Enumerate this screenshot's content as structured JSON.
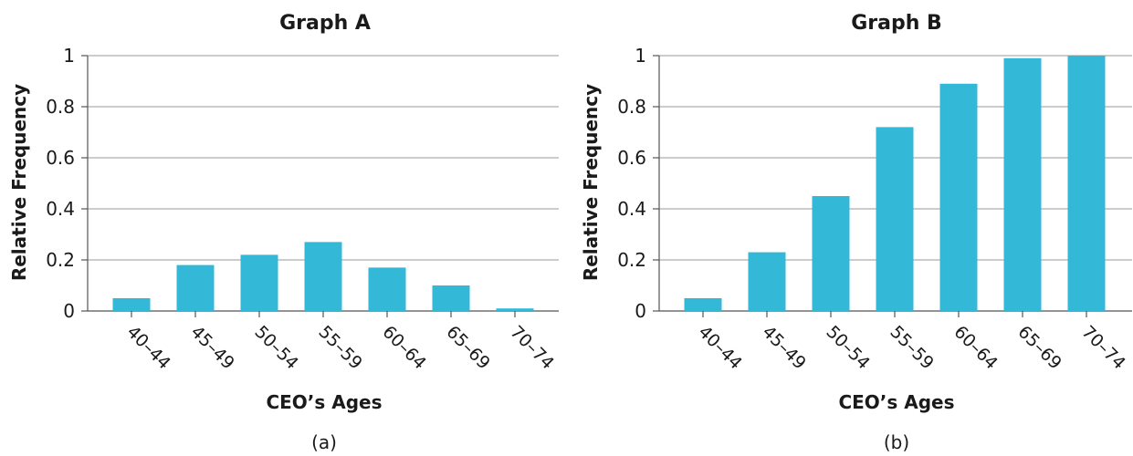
{
  "chart_data": [
    {
      "type": "bar",
      "title": "Graph A",
      "caption": "(a)",
      "xlabel": "CEO’s Ages",
      "ylabel": "Relative Frequency",
      "categories": [
        "40–44",
        "45–49",
        "50–54",
        "55–59",
        "60–64",
        "65–69",
        "70–74"
      ],
      "values": [
        0.05,
        0.18,
        0.22,
        0.27,
        0.17,
        0.1,
        0.01
      ],
      "ylim": [
        0,
        1
      ],
      "yticks": [
        0,
        0.2,
        0.4,
        0.6,
        0.8,
        1
      ],
      "ytick_labels": [
        "0",
        "0.2",
        "0.4",
        "0.6",
        "0.8",
        "1"
      ],
      "grid": true,
      "bar_color": "#33b8d8"
    },
    {
      "type": "bar",
      "title": "Graph B",
      "caption": "(b)",
      "xlabel": "CEO’s Ages",
      "ylabel": "Relative Frequency",
      "categories": [
        "40–44",
        "45–49",
        "50–54",
        "55–59",
        "60–64",
        "65–69",
        "70–74"
      ],
      "values": [
        0.05,
        0.23,
        0.45,
        0.72,
        0.89,
        0.99,
        1.0
      ],
      "ylim": [
        0,
        1
      ],
      "yticks": [
        0,
        0.2,
        0.4,
        0.6,
        0.8,
        1
      ],
      "ytick_labels": [
        "0",
        "0.2",
        "0.4",
        "0.6",
        "0.8",
        "1"
      ],
      "grid": true,
      "bar_color": "#33b8d8"
    }
  ]
}
